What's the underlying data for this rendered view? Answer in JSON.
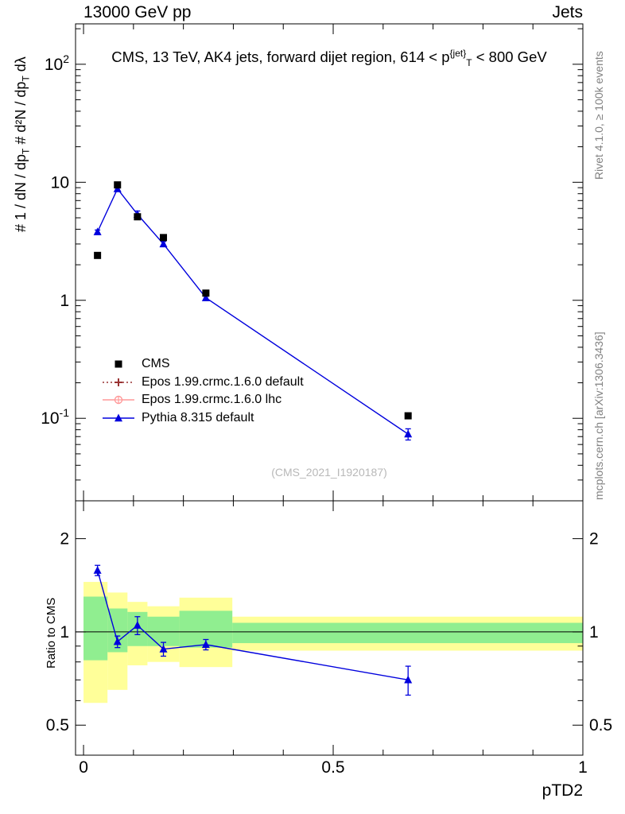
{
  "header": {
    "left_label": "13000 GeV pp",
    "right_label": "Jets"
  },
  "title": {
    "p1": "CMS, 13 TeV, AK4 jets, forward dijet region, 614 < p",
    "sup": "{jet}",
    "sub": "T",
    "p2": " < 800 GeV"
  },
  "axes": {
    "main_ylabel": {
      "p1": "# 1 / dN / dp",
      "sub1": "T",
      "p2": "  #  d²N / dp",
      "sub2": "T",
      "p3": " dλ"
    },
    "ratio_ylabel": "Ratio to CMS",
    "xlabel": "pTD2"
  },
  "annotations": {
    "watermark": "(CMS_2021_I1920187)",
    "rivet_label": "Rivet 4.1.0, ≥ 100k events",
    "mcplots_label": "mcplots.cern.ch [arXiv:1306.3436]"
  },
  "legend": {
    "items": [
      {
        "label": "CMS",
        "marker": "square",
        "color": "#000000",
        "line": "none"
      },
      {
        "label": "Epos 1.99.crmc.1.6.0 default",
        "marker": "cross",
        "color": "#993333",
        "line": "dotted"
      },
      {
        "label": "Epos 1.99.crmc.1.6.0 lhc",
        "marker": "circle-cross",
        "color": "#ff9999",
        "line": "solid"
      },
      {
        "label": "Pythia 8.315 default",
        "marker": "triangle",
        "color": "#0000dd",
        "line": "solid"
      }
    ]
  },
  "chart_data": [
    {
      "id": "main",
      "type": "line",
      "title": "CMS, 13 TeV, AK4 jets, forward dijet region, 614 < pT^{jet} < 800 GeV",
      "xlabel": "pTD2",
      "ylabel": "# 1/(dN/dpT) d²N/(dpT dλ)",
      "xscale": "linear",
      "yscale": "log",
      "xlim": [
        -0.016,
        1.0
      ],
      "ylim": [
        0.02,
        220
      ],
      "xticks": [
        0,
        0.5,
        1
      ],
      "xtick_labels": [
        "0",
        "0.5",
        "1"
      ],
      "xminor_step": 0.1,
      "yticks": [
        100,
        10,
        1,
        0.1
      ],
      "ytick_labels": [
        {
          "t": "10",
          "e": "2"
        },
        {
          "t": "10",
          "e": ""
        },
        {
          "t": "1",
          "e": ""
        },
        {
          "t": "10",
          "e": "-1"
        }
      ],
      "grid": false,
      "legend_position": "center-left",
      "series": [
        {
          "name": "Pythia 8.315 default",
          "style": "line+points",
          "marker": "triangle",
          "color": "#0000dd",
          "x": [
            0.028,
            0.068,
            0.108,
            0.16,
            0.245,
            0.65
          ],
          "y": [
            3.8,
            8.8,
            5.35,
            3.0,
            1.05,
            0.0735
          ],
          "yerr": [
            0.14,
            0.38,
            0.36,
            0.15,
            0.04,
            0.008
          ]
        },
        {
          "name": "CMS",
          "style": "points",
          "marker": "square",
          "color": "#000000",
          "x": [
            0.028,
            0.068,
            0.108,
            0.16,
            0.245,
            0.65
          ],
          "y": [
            2.4,
            9.5,
            5.1,
            3.4,
            1.15,
            0.105
          ]
        }
      ]
    },
    {
      "id": "ratio",
      "type": "ratio",
      "ylabel": "Ratio to CMS",
      "xlabel": "pTD2",
      "xscale": "linear",
      "yscale": "log",
      "xlim": [
        -0.016,
        1.0
      ],
      "ylim": [
        0.4,
        2.65
      ],
      "xticks": [
        0,
        0.5,
        1
      ],
      "xtick_labels": [
        "0",
        "0.5",
        "1"
      ],
      "xminor_step": 0.1,
      "yticks": [
        0.5,
        1,
        2
      ],
      "ytick_labels": [
        "0.5",
        "1",
        "2"
      ],
      "yminor": [
        0.6,
        0.7,
        0.8,
        0.9
      ],
      "reference_y": 1,
      "band_colors": {
        "outer": "#ffff99",
        "inner": "#90ee90"
      },
      "bands": [
        {
          "x0": 0.0,
          "x1": 0.048,
          "outer": [
            0.59,
            1.45
          ],
          "inner": [
            0.81,
            1.3
          ]
        },
        {
          "x0": 0.048,
          "x1": 0.088,
          "outer": [
            0.65,
            1.34
          ],
          "inner": [
            0.86,
            1.19
          ]
        },
        {
          "x0": 0.088,
          "x1": 0.128,
          "outer": [
            0.78,
            1.25
          ],
          "inner": [
            0.9,
            1.16
          ]
        },
        {
          "x0": 0.128,
          "x1": 0.192,
          "outer": [
            0.8,
            1.21
          ],
          "inner": [
            0.9,
            1.12
          ]
        },
        {
          "x0": 0.192,
          "x1": 0.298,
          "outer": [
            0.77,
            1.29
          ],
          "inner": [
            0.89,
            1.17
          ]
        },
        {
          "x0": 0.298,
          "x1": 1.0,
          "outer": [
            0.87,
            1.12
          ],
          "inner": [
            0.92,
            1.07
          ]
        }
      ],
      "series": [
        {
          "name": "Pythia 8.315 default",
          "style": "line+points",
          "marker": "triangle",
          "color": "#0000dd",
          "x": [
            0.028,
            0.068,
            0.108,
            0.16,
            0.245,
            0.65
          ],
          "y": [
            1.58,
            0.93,
            1.05,
            0.88,
            0.91,
            0.7
          ],
          "yerr": [
            0.06,
            0.04,
            0.07,
            0.045,
            0.035,
            0.075
          ]
        }
      ]
    }
  ]
}
